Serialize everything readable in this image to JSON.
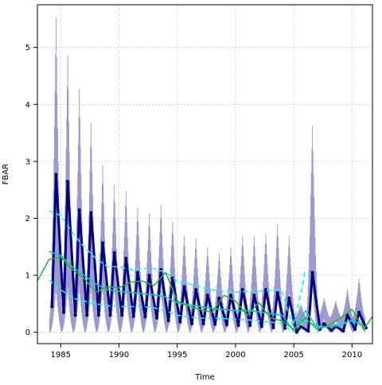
{
  "chart_data": {
    "type": "line",
    "title": "",
    "xlabel": "Time",
    "ylabel": "FBAR",
    "xlim": [
      1983.0,
      2011.75
    ],
    "ylim": [
      -0.2,
      5.75
    ],
    "xticks": [
      1985,
      1990,
      1995,
      2000,
      2005,
      2010
    ],
    "yticks": [
      0,
      1,
      2,
      3,
      4,
      5
    ],
    "grid": true,
    "legend": "none",
    "colors": {
      "interval": "#9999cc",
      "fbar": "#000080",
      "upper_band": "#00ffff",
      "lower_band": "#00ffff",
      "mid_line": "#00cccc",
      "trend": "#22bb22",
      "grid": "#bbbbbb"
    },
    "interval_peaks": [
      [
        1984.6,
        5.55
      ],
      [
        1985.6,
        4.9
      ],
      [
        1986.6,
        4.3
      ],
      [
        1987.6,
        3.7
      ],
      [
        1988.6,
        2.95
      ],
      [
        1989.6,
        2.6
      ],
      [
        1990.6,
        2.5
      ],
      [
        1991.6,
        2.2
      ],
      [
        1992.6,
        2.1
      ],
      [
        1993.6,
        2.25
      ],
      [
        1994.6,
        1.95
      ],
      [
        1995.6,
        1.7
      ],
      [
        1996.6,
        1.65
      ],
      [
        1997.6,
        1.5
      ],
      [
        1998.6,
        1.4
      ],
      [
        1999.6,
        1.5
      ],
      [
        2000.6,
        1.7
      ],
      [
        2001.6,
        1.7
      ],
      [
        2002.6,
        1.75
      ],
      [
        2003.6,
        1.9
      ],
      [
        2004.6,
        1.7
      ],
      [
        2005.6,
        0.5
      ],
      [
        2006.6,
        3.65
      ],
      [
        2007.6,
        0.6
      ],
      [
        2008.6,
        0.55
      ],
      [
        2009.6,
        0.75
      ],
      [
        2010.6,
        0.95
      ]
    ],
    "fbar_peaks": [
      [
        1984.6,
        2.77
      ],
      [
        1985.6,
        2.65
      ],
      [
        1986.6,
        2.15
      ],
      [
        1987.6,
        2.1
      ],
      [
        1988.6,
        1.57
      ],
      [
        1989.6,
        1.4
      ],
      [
        1990.6,
        1.3
      ],
      [
        1991.6,
        1.05
      ],
      [
        1992.6,
        1.0
      ],
      [
        1993.6,
        1.1
      ],
      [
        1994.6,
        0.95
      ],
      [
        1995.6,
        0.8
      ],
      [
        1996.6,
        0.75
      ],
      [
        1997.6,
        0.65
      ],
      [
        1998.6,
        0.6
      ],
      [
        1999.6,
        0.65
      ],
      [
        2000.6,
        0.75
      ],
      [
        2001.6,
        0.65
      ],
      [
        2002.6,
        0.75
      ],
      [
        2003.6,
        0.7
      ],
      [
        2004.6,
        0.6
      ],
      [
        2005.6,
        0.1
      ],
      [
        2006.6,
        1.05
      ],
      [
        2007.6,
        0.15
      ],
      [
        2008.6,
        0.1
      ],
      [
        2009.6,
        0.3
      ],
      [
        2010.6,
        0.35
      ]
    ],
    "fbar_troughs": [
      [
        1984.25,
        0.45
      ],
      [
        1985.25,
        0.35
      ],
      [
        1986.25,
        0.3
      ],
      [
        1987.25,
        0.3
      ],
      [
        1988.25,
        0.3
      ],
      [
        1989.25,
        0.3
      ],
      [
        1990.25,
        0.3
      ],
      [
        1991.25,
        0.28
      ],
      [
        1992.25,
        0.27
      ],
      [
        1993.25,
        0.25
      ],
      [
        1994.25,
        0.2
      ],
      [
        1995.25,
        0.18
      ],
      [
        1996.25,
        0.15
      ],
      [
        1997.25,
        0.15
      ],
      [
        1998.25,
        0.14
      ],
      [
        1999.25,
        0.13
      ],
      [
        2000.25,
        0.12
      ],
      [
        2001.25,
        0.12
      ],
      [
        2002.25,
        0.1
      ],
      [
        2003.25,
        0.08
      ],
      [
        2004.25,
        0.07
      ],
      [
        2005.25,
        0.0
      ],
      [
        2006.25,
        0.02
      ],
      [
        2007.25,
        0.05
      ],
      [
        2008.25,
        0.03
      ],
      [
        2009.25,
        0.02
      ],
      [
        2010.25,
        0.05
      ],
      [
        2011.2,
        0.08
      ]
    ],
    "series": [
      {
        "x": [
          1984.0,
          1985.0,
          1986.0,
          1987.0,
          1988.0,
          1989.0,
          1990.0,
          1991.0,
          1992.0,
          1993.0,
          1994.0,
          1995.0,
          1996.0,
          1997.0,
          1998.0,
          1999.0,
          2000.0,
          2001.0,
          2002.0,
          2003.0,
          2004.0,
          2004.9,
          2005.5,
          2006.0
        ],
        "values": [
          2.13,
          2.05,
          1.75,
          1.5,
          1.3,
          1.15,
          1.15,
          1.1,
          1.12,
          1.12,
          1.05,
          0.9,
          0.85,
          0.8,
          0.75,
          0.72,
          0.7,
          0.72,
          0.72,
          0.75,
          0.72,
          0.1,
          0.6,
          1.1
        ],
        "style": "dashed"
      },
      {
        "x": [
          1984.0,
          1985.0,
          1986.0,
          1987.0,
          1988.0,
          1989.0,
          1990.0,
          1991.0,
          1992.0,
          1993.0,
          1994.0,
          1995.0,
          1996.0,
          1997.0,
          1998.0,
          1999.0,
          2000.0,
          2001.0,
          2002.0,
          2003.0,
          2004.0,
          2004.8,
          2006.0,
          2007.0,
          2008.0,
          2009.0,
          2010.0,
          2011.0
        ],
        "values": [
          0.92,
          0.75,
          0.6,
          0.55,
          0.5,
          0.47,
          0.45,
          0.45,
          0.45,
          0.43,
          0.38,
          0.3,
          0.27,
          0.25,
          0.25,
          0.24,
          0.23,
          0.22,
          0.2,
          0.18,
          0.15,
          0.02,
          0.22,
          0.1,
          0.12,
          0.15,
          0.2,
          0.1
        ],
        "style": "dashed"
      },
      {
        "x": [
          1984.0,
          1985.0,
          1986.0,
          1987.0,
          1988.0,
          1989.0,
          1990.0,
          1991.0,
          1992.0,
          1993.0,
          1994.0,
          1995.0,
          1996.0,
          1997.0,
          1998.0,
          1999.0,
          2000.0,
          2001.0,
          2002.0,
          2003.0,
          2004.0,
          2005.0,
          2006.0,
          2007.0,
          2008.0,
          2009.0,
          2010.0,
          2011.0
        ],
        "values": [
          1.42,
          1.35,
          1.15,
          1.0,
          0.85,
          0.75,
          0.72,
          0.7,
          0.68,
          0.66,
          0.62,
          0.52,
          0.48,
          0.45,
          0.42,
          0.4,
          0.38,
          0.38,
          0.36,
          0.33,
          0.3,
          0.02,
          0.38,
          0.08,
          0.1,
          0.12,
          0.22,
          0.1
        ],
        "style": "solid"
      },
      {
        "x": [
          1983.0,
          1984.0,
          1985.0,
          1986.0,
          1987.0,
          1988.0,
          1989.0,
          1990.0,
          1991.0,
          1992.0,
          1993.0,
          1994.0,
          1995.0,
          1996.0,
          1997.0,
          1998.0,
          1999.0,
          2000.0,
          2001.0,
          2002.0,
          2003.0,
          2004.0,
          2005.0,
          2006.0,
          2007.0,
          2008.0,
          2009.0,
          2010.0,
          2011.0,
          2011.75
        ],
        "values": [
          0.9,
          1.28,
          1.32,
          1.1,
          0.95,
          0.7,
          0.8,
          0.78,
          0.88,
          0.9,
          0.82,
          1.05,
          0.55,
          0.45,
          0.4,
          0.35,
          0.65,
          0.55,
          0.3,
          0.52,
          0.25,
          0.2,
          0.05,
          0.25,
          0.05,
          0.12,
          0.25,
          0.4,
          0.05,
          0.28
        ],
        "style": "solid"
      }
    ]
  }
}
